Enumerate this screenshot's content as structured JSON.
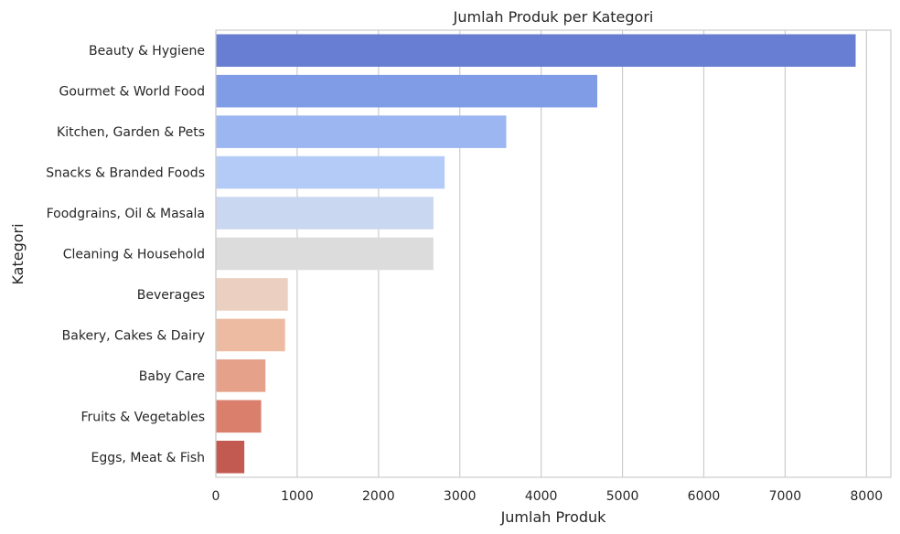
{
  "chart_data": {
    "type": "bar",
    "orientation": "horizontal",
    "title": "Jumlah Produk per Kategori",
    "xlabel": "Jumlah Produk",
    "ylabel": "Kategori",
    "xlim": [
      0,
      8300
    ],
    "x_ticks": [
      "0",
      "1000",
      "2000",
      "3000",
      "4000",
      "5000",
      "6000",
      "7000",
      "8000"
    ],
    "grid": "vertical",
    "categories": [
      "Beauty & Hygiene",
      "Gourmet & World Food",
      "Kitchen, Garden & Pets",
      "Snacks & Branded Foods",
      "Foodgrains, Oil & Masala",
      "Cleaning & Household",
      "Beverages",
      "Bakery, Cakes & Dairy",
      "Baby Care",
      "Fruits & Vegetables",
      "Eggs, Meat & Fish"
    ],
    "values": [
      7867,
      4690,
      3571,
      2813,
      2676,
      2675,
      885,
      851,
      610,
      557,
      350
    ],
    "colors": [
      "#677ed2",
      "#809ce6",
      "#9cb6f2",
      "#b4cbf8",
      "#cad7f0",
      "#dcdcdc",
      "#ebcfc1",
      "#edbba2",
      "#e5a18a",
      "#db7f6d",
      "#c25a52"
    ]
  }
}
